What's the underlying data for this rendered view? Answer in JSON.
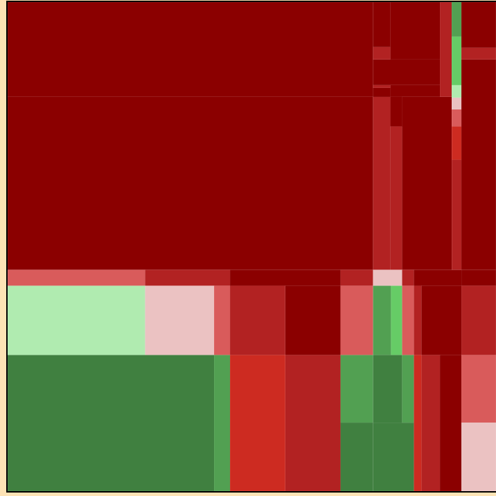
{
  "chart_data": {
    "type": "treemap",
    "title": "",
    "legend": "none",
    "color_scale": {
      "very_negative": "#8b0000",
      "negative": "#b22222",
      "moderate_negative": "#cd2b21",
      "slight_negative": "#d95b5b",
      "near_zero_negative": "#ebc2c2",
      "near_zero_positive": "#b0ebb0",
      "slight_positive": "#66cc66",
      "positive": "#52a052",
      "strong_positive": "#408040"
    },
    "cells": [
      {
        "x0": 0,
        "x1": 529,
        "y0": 0,
        "y1": 137,
        "color": "#8b0000"
      },
      {
        "x0": 529,
        "x1": 554,
        "y0": 0,
        "y1": 65,
        "color": "#8b0000"
      },
      {
        "x0": 529,
        "x1": 554,
        "y0": 65,
        "y1": 83,
        "color": "#b22222"
      },
      {
        "x0": 529,
        "x1": 626,
        "y0": 83,
        "y1": 120,
        "color": "#8b0000"
      },
      {
        "x0": 529,
        "x1": 554,
        "y0": 120,
        "y1": 124,
        "color": "#b22222"
      },
      {
        "x0": 554,
        "x1": 626,
        "y0": 0,
        "y1": 83,
        "color": "#8b0000"
      },
      {
        "x0": 554,
        "x1": 626,
        "y0": 120,
        "y1": 137,
        "color": "#8b0000"
      },
      {
        "x0": 626,
        "x1": 643,
        "y0": 0,
        "y1": 137,
        "color": "#b22222"
      },
      {
        "x0": 643,
        "x1": 657,
        "y0": 0,
        "y1": 50,
        "color": "#52a052"
      },
      {
        "x0": 643,
        "x1": 657,
        "y0": 50,
        "y1": 120,
        "color": "#66cc66"
      },
      {
        "x0": 643,
        "x1": 657,
        "y0": 120,
        "y1": 138,
        "color": "#b0ebb0"
      },
      {
        "x0": 643,
        "x1": 657,
        "y0": 138,
        "y1": 155,
        "color": "#ebc2c2"
      },
      {
        "x0": 643,
        "x1": 657,
        "y0": 155,
        "y1": 180,
        "color": "#d95b5b"
      },
      {
        "x0": 643,
        "x1": 657,
        "y0": 180,
        "y1": 228,
        "color": "#cd2b21"
      },
      {
        "x0": 643,
        "x1": 657,
        "y0": 228,
        "y1": 387,
        "color": "#b22222"
      },
      {
        "x0": 657,
        "x1": 707,
        "y0": 0,
        "y1": 66,
        "color": "#8b0000"
      },
      {
        "x0": 657,
        "x1": 707,
        "y0": 66,
        "y1": 83,
        "color": "#b22222"
      },
      {
        "x0": 657,
        "x1": 707,
        "y0": 83,
        "y1": 387,
        "color": "#8b0000"
      },
      {
        "x0": 0,
        "x1": 529,
        "y0": 137,
        "y1": 387,
        "color": "#8b0000"
      },
      {
        "x0": 529,
        "x1": 554,
        "y0": 137,
        "y1": 387,
        "color": "#b22222"
      },
      {
        "x0": 554,
        "x1": 571,
        "y0": 180,
        "y1": 387,
        "color": "#b22222"
      },
      {
        "x0": 571,
        "x1": 643,
        "y0": 137,
        "y1": 387,
        "color": "#8b0000"
      },
      {
        "x0": 0,
        "x1": 199,
        "y0": 387,
        "y1": 410,
        "color": "#d95b5b"
      },
      {
        "x0": 199,
        "x1": 322,
        "y0": 387,
        "y1": 410,
        "color": "#b22222"
      },
      {
        "x0": 0,
        "x1": 199,
        "y0": 410,
        "y1": 510,
        "color": "#b0ebb0"
      },
      {
        "x0": 199,
        "x1": 299,
        "y0": 410,
        "y1": 510,
        "color": "#ebc2c2"
      },
      {
        "x0": 299,
        "x1": 322,
        "y0": 410,
        "y1": 510,
        "color": "#d95b5b"
      },
      {
        "x0": 322,
        "x1": 402,
        "y0": 410,
        "y1": 510,
        "color": "#b22222"
      },
      {
        "x0": 322,
        "x1": 482,
        "y0": 387,
        "y1": 410,
        "color": "#8b0000"
      },
      {
        "x0": 402,
        "x1": 482,
        "y0": 410,
        "y1": 510,
        "color": "#8b0000"
      },
      {
        "x0": 482,
        "x1": 529,
        "y0": 387,
        "y1": 410,
        "color": "#b22222"
      },
      {
        "x0": 482,
        "x1": 529,
        "y0": 410,
        "y1": 510,
        "color": "#d95b5b"
      },
      {
        "x0": 529,
        "x1": 571,
        "y0": 387,
        "y1": 410,
        "color": "#ebc2c2"
      },
      {
        "x0": 529,
        "x1": 555,
        "y0": 410,
        "y1": 510,
        "color": "#52a052"
      },
      {
        "x0": 555,
        "x1": 571,
        "y0": 410,
        "y1": 510,
        "color": "#66cc66"
      },
      {
        "x0": 571,
        "x1": 588,
        "y0": 387,
        "y1": 410,
        "color": "#b22222"
      },
      {
        "x0": 571,
        "x1": 588,
        "y0": 410,
        "y1": 510,
        "color": "#d95b5b"
      },
      {
        "x0": 588,
        "x1": 599,
        "y0": 410,
        "y1": 510,
        "color": "#b22222"
      },
      {
        "x0": 588,
        "x1": 657,
        "y0": 387,
        "y1": 410,
        "color": "#8b0000"
      },
      {
        "x0": 599,
        "x1": 657,
        "y0": 410,
        "y1": 510,
        "color": "#8b0000"
      },
      {
        "x0": 657,
        "x1": 707,
        "y0": 387,
        "y1": 410,
        "color": "#8b0000"
      },
      {
        "x0": 657,
        "x1": 707,
        "y0": 410,
        "y1": 510,
        "color": "#b22222"
      },
      {
        "x0": 0,
        "x1": 299,
        "y0": 510,
        "y1": 707,
        "color": "#408040"
      },
      {
        "x0": 299,
        "x1": 322,
        "y0": 510,
        "y1": 707,
        "color": "#52a052"
      },
      {
        "x0": 322,
        "x1": 402,
        "y0": 510,
        "y1": 707,
        "color": "#cd2b21"
      },
      {
        "x0": 402,
        "x1": 482,
        "y0": 510,
        "y1": 707,
        "color": "#b22222"
      },
      {
        "x0": 482,
        "x1": 529,
        "y0": 510,
        "y1": 608,
        "color": "#52a052"
      },
      {
        "x0": 482,
        "x1": 529,
        "y0": 608,
        "y1": 707,
        "color": "#408040"
      },
      {
        "x0": 529,
        "x1": 571,
        "y0": 510,
        "y1": 608,
        "color": "#408040"
      },
      {
        "x0": 529,
        "x1": 588,
        "y0": 608,
        "y1": 707,
        "color": "#408040"
      },
      {
        "x0": 571,
        "x1": 588,
        "y0": 510,
        "y1": 608,
        "color": "#52a052"
      },
      {
        "x0": 588,
        "x1": 599,
        "y0": 510,
        "y1": 707,
        "color": "#cd2b21"
      },
      {
        "x0": 599,
        "x1": 626,
        "y0": 510,
        "y1": 707,
        "color": "#b22222"
      },
      {
        "x0": 626,
        "x1": 657,
        "y0": 510,
        "y1": 707,
        "color": "#8b0000"
      },
      {
        "x0": 657,
        "x1": 707,
        "y0": 510,
        "y1": 608,
        "color": "#d95b5b"
      },
      {
        "x0": 657,
        "x1": 707,
        "y0": 608,
        "y1": 707,
        "color": "#ebc2c2"
      }
    ]
  }
}
